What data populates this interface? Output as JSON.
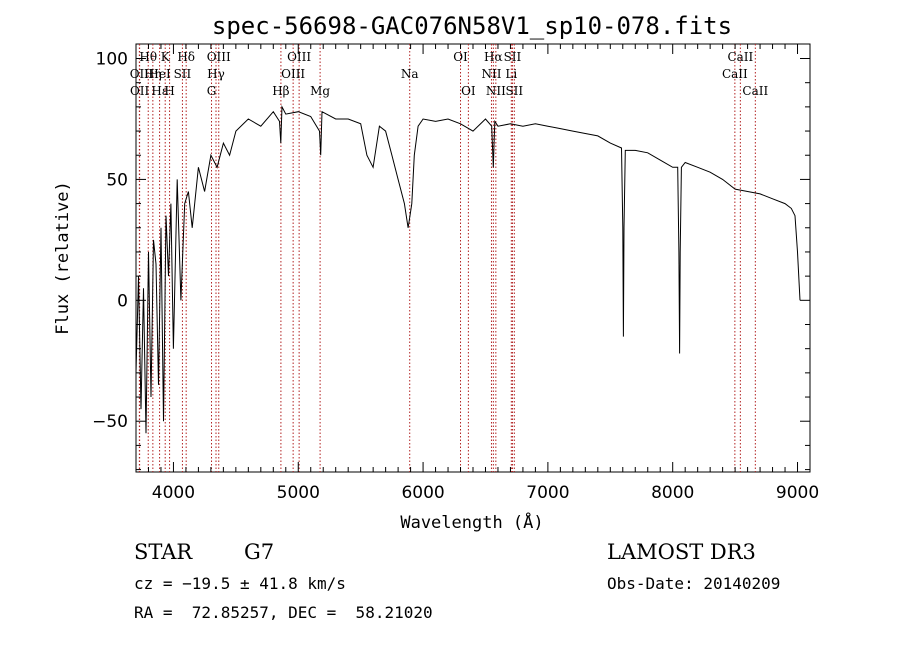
{
  "chart_data": {
    "type": "line",
    "title": "spec-56698-GAC076N58V1_sp10-078.fits",
    "xlabel": "Wavelength (Å)",
    "ylabel": "Flux (relative)",
    "xlim": [
      3700,
      9100
    ],
    "ylim": [
      -71,
      106
    ],
    "xticks": [
      4000,
      5000,
      6000,
      7000,
      8000,
      9000
    ],
    "xtick_labels": [
      "4000",
      "5000",
      "6000",
      "7000",
      "8000",
      "9000"
    ],
    "yticks": [
      -50,
      0,
      50,
      100
    ],
    "ytick_labels": [
      "−50",
      "0",
      "50",
      "100"
    ],
    "series": [
      {
        "name": "spectrum",
        "x": [
          3700,
          3720,
          3740,
          3760,
          3780,
          3800,
          3820,
          3840,
          3860,
          3880,
          3900,
          3920,
          3940,
          3960,
          3980,
          4000,
          4030,
          4060,
          4090,
          4120,
          4150,
          4200,
          4250,
          4300,
          4350,
          4400,
          4450,
          4500,
          4600,
          4700,
          4800,
          4850,
          4860,
          4870,
          4900,
          5000,
          5100,
          5170,
          5180,
          5190,
          5300,
          5400,
          5500,
          5550,
          5600,
          5650,
          5700,
          5750,
          5800,
          5850,
          5880,
          5895,
          5910,
          5930,
          5960,
          6000,
          6100,
          6200,
          6300,
          6400,
          6500,
          6550,
          6563,
          6575,
          6600,
          6700,
          6800,
          6900,
          7000,
          7100,
          7200,
          7300,
          7400,
          7500,
          7590,
          7600,
          7605,
          7610,
          7620,
          7650,
          7700,
          7800,
          7900,
          8000,
          8040,
          8050,
          8055,
          8060,
          8070,
          8100,
          8200,
          8300,
          8400,
          8500,
          8600,
          8700,
          8800,
          8900,
          8950,
          8980,
          9000,
          9020
        ],
        "values": [
          -30,
          10,
          -45,
          5,
          -55,
          20,
          -40,
          25,
          15,
          -35,
          30,
          -50,
          35,
          10,
          40,
          -20,
          50,
          0,
          40,
          45,
          30,
          55,
          45,
          60,
          55,
          65,
          60,
          70,
          75,
          72,
          78,
          74,
          65,
          80,
          77,
          78,
          76,
          70,
          60,
          78,
          75,
          75,
          73,
          60,
          55,
          72,
          70,
          60,
          50,
          40,
          30,
          35,
          40,
          60,
          72,
          75,
          74,
          75,
          73,
          70,
          75,
          72,
          55,
          74,
          72,
          73,
          72,
          73,
          72,
          71,
          70,
          69,
          68,
          65,
          63,
          30,
          -15,
          30,
          62,
          62,
          62,
          61,
          58,
          55,
          55,
          20,
          -22,
          20,
          55,
          57,
          55,
          53,
          50,
          46,
          45,
          44,
          42,
          40,
          38,
          35,
          20,
          0
        ]
      }
    ],
    "lines": [
      {
        "label": "Hθ",
        "x": 3798,
        "row": 0
      },
      {
        "label": "OII",
        "x": 3727,
        "row": 1
      },
      {
        "label": "OII",
        "x": 3729,
        "row": 2
      },
      {
        "label": "Hη",
        "x": 3835,
        "row": 1
      },
      {
        "label": "HeI",
        "x": 3889,
        "row": 1
      },
      {
        "label": "Hε",
        "x": 3890,
        "row": 2
      },
      {
        "label": "K",
        "x": 3934,
        "row": 0
      },
      {
        "label": "SII",
        "x": 4072,
        "row": 1
      },
      {
        "label": "H",
        "x": 3969,
        "row": 2
      },
      {
        "label": "Hδ",
        "x": 4102,
        "row": 0
      },
      {
        "label": "OIII",
        "x": 4363,
        "row": 0
      },
      {
        "label": "Hγ",
        "x": 4341,
        "row": 1
      },
      {
        "label": "G",
        "x": 4305,
        "row": 2
      },
      {
        "label": "OIII",
        "x": 5007,
        "row": 0
      },
      {
        "label": "OIII",
        "x": 4959,
        "row": 1
      },
      {
        "label": "Hβ",
        "x": 4861,
        "row": 2
      },
      {
        "label": "Mg",
        "x": 5175,
        "row": 2
      },
      {
        "label": "Na",
        "x": 5893,
        "row": 1
      },
      {
        "label": "OI",
        "x": 6300,
        "row": 0
      },
      {
        "label": "OI",
        "x": 6363,
        "row": 2
      },
      {
        "label": "Hα",
        "x": 6563,
        "row": 0
      },
      {
        "label": "SII",
        "x": 6716,
        "row": 0
      },
      {
        "label": "NII",
        "x": 6548,
        "row": 1
      },
      {
        "label": "Li",
        "x": 6707,
        "row": 1
      },
      {
        "label": "NII",
        "x": 6583,
        "row": 2
      },
      {
        "label": "SII",
        "x": 6731,
        "row": 2
      },
      {
        "label": "CaII",
        "x": 8542,
        "row": 0
      },
      {
        "label": "CaII",
        "x": 8498,
        "row": 1
      },
      {
        "label": "CaII",
        "x": 8662,
        "row": 2
      }
    ]
  },
  "info": {
    "object_type": "STAR",
    "subclass": "G7",
    "redshift": "cz = −19.5 ± 41.8 km/s",
    "coords": "RA =  72.85257, DEC =  58.21020",
    "survey": "LAMOST DR3",
    "obs_date": "Obs-Date: 20140209"
  },
  "colors": {
    "line_marker": "#b22222",
    "spectrum": "#000000"
  }
}
